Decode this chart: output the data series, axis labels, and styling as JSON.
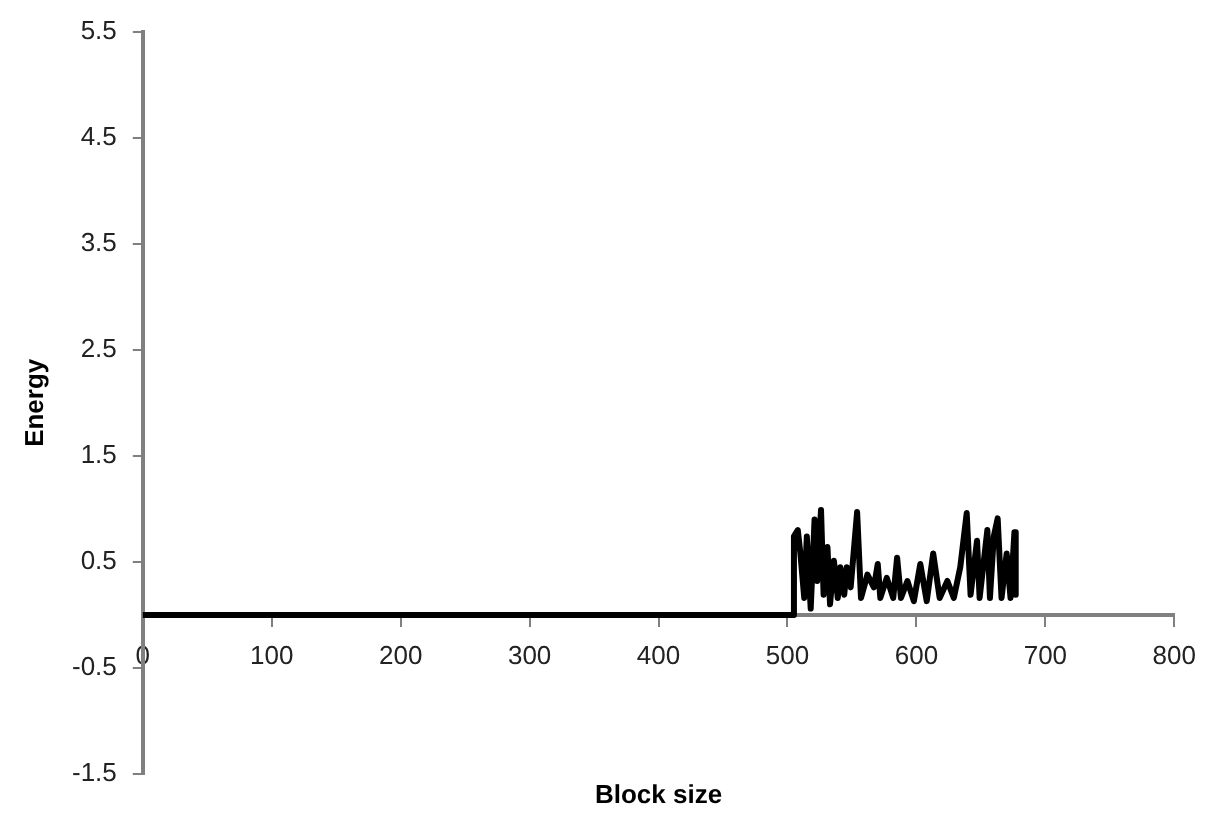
{
  "chart_data": {
    "type": "line",
    "xlabel": "Block size",
    "ylabel": "Energy",
    "x": [
      0,
      504,
      505,
      508,
      510,
      513,
      515,
      518,
      521,
      523,
      526,
      528,
      531,
      533,
      536,
      539,
      541,
      544,
      546,
      549,
      554,
      557,
      562,
      567,
      570,
      572,
      577,
      582,
      585,
      588,
      593,
      598,
      603,
      608,
      613,
      618,
      624,
      629,
      634,
      639,
      642,
      647,
      649,
      655,
      657,
      660,
      663,
      666,
      670,
      673,
      676,
      677
    ],
    "series": [
      {
        "color": "#000000",
        "values": [
          0,
          0,
          0.74,
          0.8,
          0.58,
          0.16,
          0.74,
          0.06,
          0.9,
          0.32,
          0.99,
          0.19,
          0.64,
          0.1,
          0.51,
          0.16,
          0.45,
          0.19,
          0.45,
          0.26,
          0.97,
          0.16,
          0.38,
          0.26,
          0.48,
          0.16,
          0.35,
          0.16,
          0.54,
          0.16,
          0.32,
          0.13,
          0.48,
          0.13,
          0.58,
          0.16,
          0.32,
          0.16,
          0.45,
          0.96,
          0.19,
          0.7,
          0.16,
          0.8,
          0.16,
          0.74,
          0.91,
          0.16,
          0.58,
          0.16,
          0.78,
          0.19
        ]
      }
    ],
    "xlim": [
      0,
      800
    ],
    "xticks": [
      0,
      100,
      200,
      300,
      400,
      500,
      600,
      700,
      800
    ],
    "ylim": [
      -1.5,
      5.5
    ],
    "yticks": [
      -1.5,
      -0.5,
      0.5,
      1.5,
      2.5,
      3.5,
      4.5,
      5.5
    ],
    "grid": false,
    "legend": false,
    "marker": "none",
    "line_style": "solid"
  }
}
